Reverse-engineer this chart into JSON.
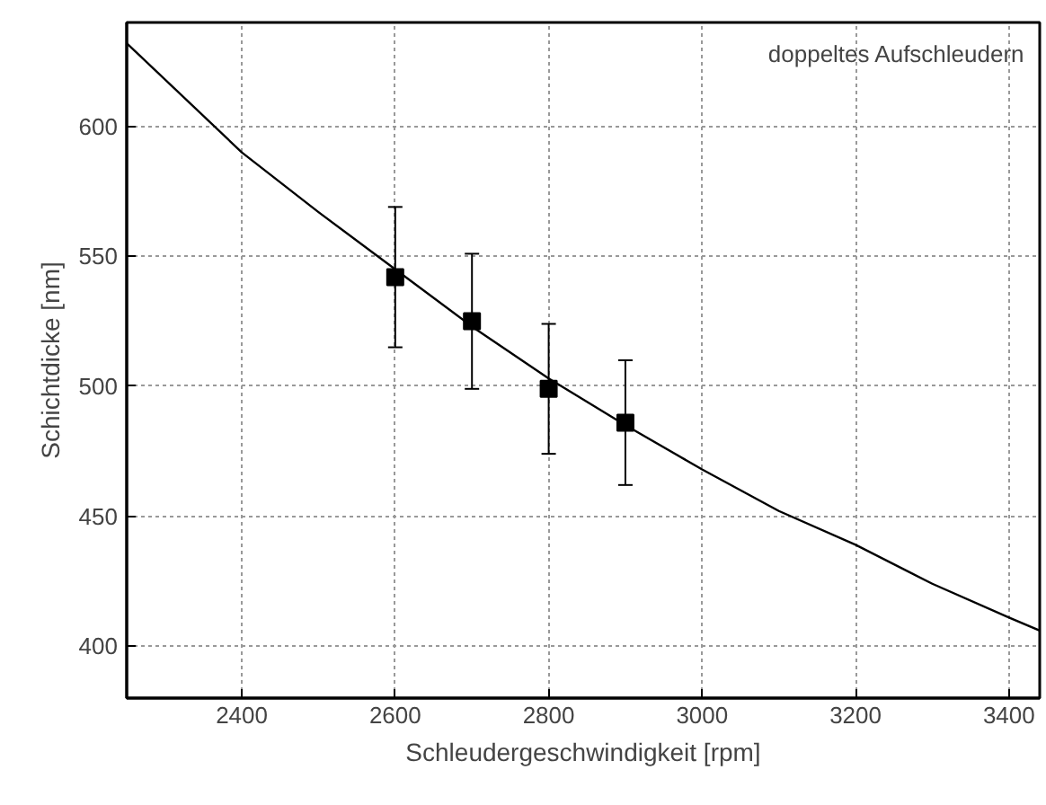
{
  "chart_data": {
    "type": "scatter",
    "xlabel": "Schleudergeschwindigkeit [rpm]",
    "ylabel": "Schichtdicke [nm]",
    "annotations": [
      "doppeltes Aufschleudern"
    ],
    "xlim": [
      2250,
      3440
    ],
    "ylim": [
      380,
      640
    ],
    "xticks": [
      2400,
      2600,
      2800,
      3000,
      3200,
      3400
    ],
    "yticks": [
      400,
      450,
      500,
      550,
      600
    ],
    "grid": true,
    "marker": "square",
    "series": [
      {
        "color": "#000000",
        "x": [
          2600,
          2700,
          2800,
          2900
        ],
        "values": [
          542,
          525,
          499,
          486
        ],
        "errors": [
          27,
          26,
          25,
          24
        ]
      },
      {
        "type": "line",
        "color": "#000000",
        "marker": "none",
        "line_style": "solid",
        "x": [
          2250,
          2400,
          2500,
          2600,
          2700,
          2800,
          2900,
          3000,
          3100,
          3200,
          3300,
          3400,
          3440
        ],
        "values": [
          632,
          590,
          567,
          545,
          523,
          503,
          485,
          468,
          452,
          439,
          424,
          411,
          406
        ]
      }
    ]
  }
}
